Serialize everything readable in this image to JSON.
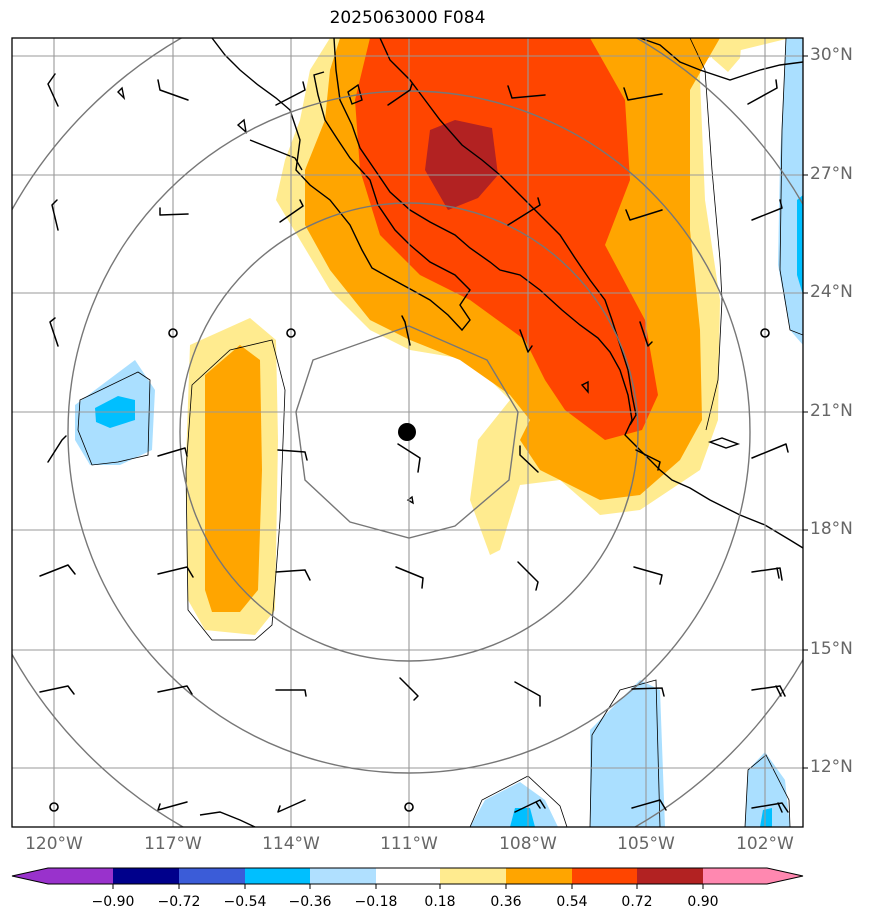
{
  "title": "2025063000 F084",
  "map": {
    "projection": "polar stereographic (rings centered on storm)",
    "lat_labels": [
      "30°N",
      "27°N",
      "24°N",
      "21°N",
      "18°N",
      "15°N",
      "12°N"
    ],
    "lon_labels": [
      "120°W",
      "117°W",
      "114°W",
      "111°W",
      "108°W",
      "105°W",
      "102°W"
    ],
    "storm_center_marker": "black dot",
    "barbs": "wind barbs",
    "fill_colors": {
      "positive_1": "#ffeb8f",
      "positive_2": "#ffa500",
      "positive_3": "#ff4500",
      "positive_4": "#b22222",
      "negative_1": "#aadfff",
      "negative_2": "#00bfff"
    }
  },
  "colorbar": {
    "ticks": [
      "−0.90",
      "−0.72",
      "−0.54",
      "−0.36",
      "−0.18",
      "0.18",
      "0.36",
      "0.54",
      "0.72",
      "0.90"
    ],
    "colors": [
      "#9932cc",
      "#00008b",
      "#3b5cd8",
      "#00bfff",
      "#b0e0ff",
      "#ffffff",
      "#ffeb8f",
      "#ffa500",
      "#ff4500",
      "#b22222",
      "#ff88b0"
    ]
  }
}
